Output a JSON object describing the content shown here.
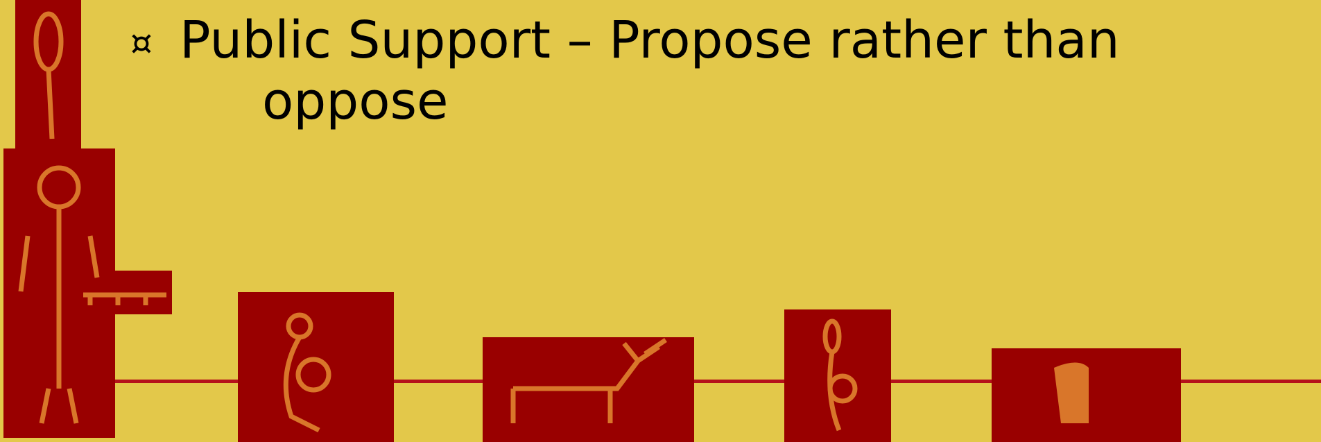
{
  "bullet": {
    "marker": "¤",
    "lines": [
      "Public Support – Propose rather than",
      "oppose"
    ]
  }
}
